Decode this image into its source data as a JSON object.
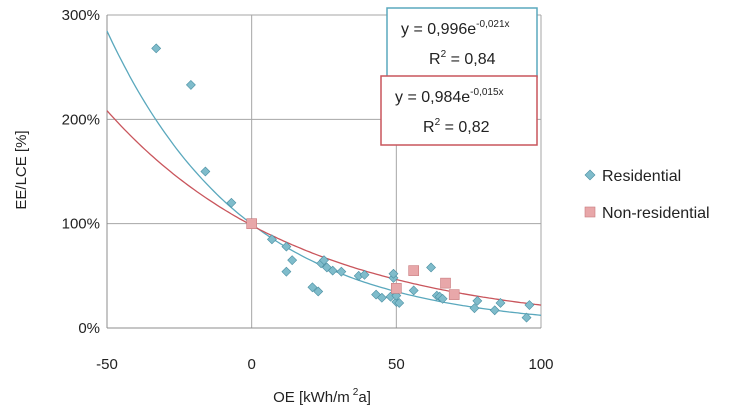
{
  "chart_data": {
    "type": "scatter",
    "xlabel_main": "OE [kWh/m",
    "xlabel_sup": "2",
    "xlabel_tail": "a]",
    "ylabel": "EE/LCE [%]",
    "xlim": [
      -50,
      100
    ],
    "ylim": [
      0,
      300
    ],
    "x_ticks": [
      -50,
      0,
      50,
      100
    ],
    "x_tick_labels": [
      "-50",
      "0",
      "50",
      "100"
    ],
    "y_ticks": [
      0,
      100,
      200,
      300
    ],
    "y_tick_labels": [
      "0%",
      "100%",
      "200%",
      "300%"
    ],
    "grid": true,
    "legend_position": "right",
    "series": [
      {
        "name": "Residential",
        "marker": "diamond",
        "color": "#7fbccb",
        "edge_color": "#4a8fa2",
        "points": [
          [
            -33,
            268
          ],
          [
            -21,
            233
          ],
          [
            -16,
            150
          ],
          [
            -7,
            120
          ],
          [
            0,
            100
          ],
          [
            7,
            85
          ],
          [
            12,
            78
          ],
          [
            14,
            65
          ],
          [
            12,
            54
          ],
          [
            21,
            39
          ],
          [
            23,
            35
          ],
          [
            24,
            62
          ],
          [
            25,
            65
          ],
          [
            26,
            58
          ],
          [
            28,
            55
          ],
          [
            31,
            54
          ],
          [
            37,
            50
          ],
          [
            39,
            51
          ],
          [
            43,
            32
          ],
          [
            45,
            29
          ],
          [
            48,
            30
          ],
          [
            49,
            48
          ],
          [
            49,
            52
          ],
          [
            50,
            25
          ],
          [
            50,
            31
          ],
          [
            51,
            24
          ],
          [
            56,
            36
          ],
          [
            62,
            58
          ],
          [
            64,
            31
          ],
          [
            65,
            30
          ],
          [
            66,
            28
          ],
          [
            77,
            19
          ],
          [
            78,
            26
          ],
          [
            84,
            17
          ],
          [
            86,
            24
          ],
          [
            95,
            10
          ],
          [
            96,
            22
          ]
        ]
      },
      {
        "name": "Non-residential",
        "marker": "square",
        "color": "#e8a7a9",
        "edge_color": "#c97a7d",
        "points": [
          [
            0,
            100
          ],
          [
            50,
            38
          ],
          [
            56,
            55
          ],
          [
            67,
            43
          ],
          [
            70,
            32
          ]
        ]
      }
    ],
    "trendlines": [
      {
        "series": "Residential",
        "a": 0.996,
        "b": -0.021,
        "color": "#5aa8bd",
        "eq_prefix": "y = ",
        "eq_coef": "0,996e",
        "eq_exp": "-0,021x",
        "r2_label": "R",
        "r2_sup": "2",
        "r2_value": " = 0,84",
        "box_color": "#5aa8bd"
      },
      {
        "series": "Non-residential",
        "a": 0.984,
        "b": -0.015,
        "color": "#c9555c",
        "eq_prefix": "y = ",
        "eq_coef": "0,984e",
        "eq_exp": "-0,015x",
        "r2_label": "R",
        "r2_sup": "2",
        "r2_value": " = 0,82",
        "box_color": "#c9555c"
      }
    ]
  }
}
